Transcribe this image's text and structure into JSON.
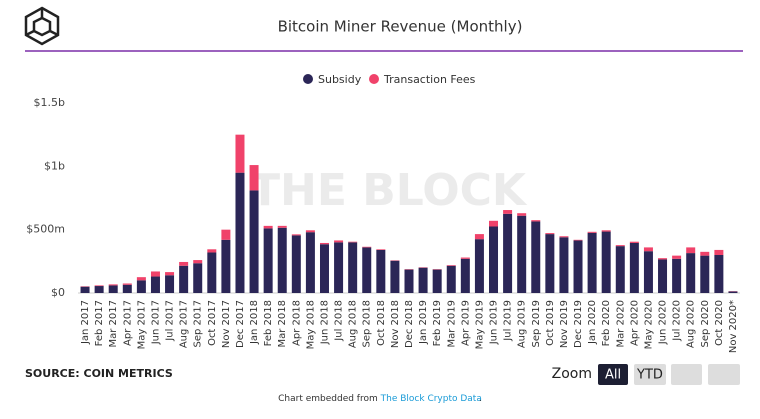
{
  "chart_data": {
    "type": "bar",
    "stacked": true,
    "title": "Bitcoin Miner Revenue (Monthly)",
    "watermark": "THE BLOCK",
    "source": "SOURCE: COIN METRICS",
    "zoom": {
      "label": "Zoom",
      "buttons": [
        "All",
        "YTD"
      ]
    },
    "footer": {
      "prefix": "Chart embedded from",
      "link": "The Block Crypto Data",
      "suffix": "."
    },
    "categories": [
      "Jan 2017",
      "Feb 2017",
      "Mar 2017",
      "Apr 2017",
      "May 2017",
      "Jun 2017",
      "Jul 2017",
      "Aug 2017",
      "Sep 2017",
      "Oct 2017",
      "Nov 2017",
      "Dec 2017",
      "Jan 2018",
      "Feb 2018",
      "Mar 2018",
      "Apr 2018",
      "May 2018",
      "Jun 2018",
      "Jul 2018",
      "Aug 2018",
      "Sep 2018",
      "Oct 2018",
      "Nov 2018",
      "Dec 2018",
      "Jan 2019",
      "Feb 2019",
      "Mar 2019",
      "Apr 2019",
      "May 2019",
      "Jun 2019",
      "Jul 2019",
      "Aug 2019",
      "Sep 2019",
      "Oct 2019",
      "Nov 2019",
      "Dec 2019",
      "Jan 2020",
      "Feb 2020",
      "Mar 2020",
      "Apr 2020",
      "May 2020",
      "Jun 2020",
      "Jul 2020",
      "Aug 2020",
      "Sep 2020",
      "Oct 2020",
      "Nov 2020*"
    ],
    "series": [
      {
        "name": "Subsidy",
        "color": "#2b2657",
        "values": [
          50000000,
          55000000,
          60000000,
          65000000,
          100000000,
          130000000,
          140000000,
          215000000,
          235000000,
          320000000,
          420000000,
          950000000,
          810000000,
          510000000,
          515000000,
          455000000,
          480000000,
          385000000,
          400000000,
          400000000,
          360000000,
          340000000,
          255000000,
          185000000,
          200000000,
          185000000,
          215000000,
          270000000,
          425000000,
          525000000,
          625000000,
          610000000,
          565000000,
          465000000,
          440000000,
          415000000,
          475000000,
          485000000,
          370000000,
          395000000,
          330000000,
          265000000,
          270000000,
          315000000,
          295000000,
          300000000,
          12000000
        ]
      },
      {
        "name": "Transaction Fees",
        "color": "#f0426a",
        "values": [
          3000000,
          5000000,
          8000000,
          10000000,
          25000000,
          40000000,
          25000000,
          30000000,
          25000000,
          25000000,
          80000000,
          300000000,
          200000000,
          20000000,
          15000000,
          8000000,
          15000000,
          10000000,
          15000000,
          5000000,
          5000000,
          5000000,
          3000000,
          3000000,
          3000000,
          3000000,
          5000000,
          10000000,
          40000000,
          45000000,
          30000000,
          20000000,
          10000000,
          8000000,
          8000000,
          5000000,
          8000000,
          10000000,
          8000000,
          10000000,
          30000000,
          10000000,
          25000000,
          45000000,
          30000000,
          40000000,
          2000000
        ]
      }
    ],
    "ylim": [
      0,
      1500000000
    ],
    "yticks": [
      {
        "value": 0,
        "label": "$0"
      },
      {
        "value": 500000000,
        "label": "$500m"
      },
      {
        "value": 1000000000,
        "label": "$1b"
      },
      {
        "value": 1500000000,
        "label": "$1.5b"
      }
    ],
    "grid": false,
    "legend": "top"
  }
}
